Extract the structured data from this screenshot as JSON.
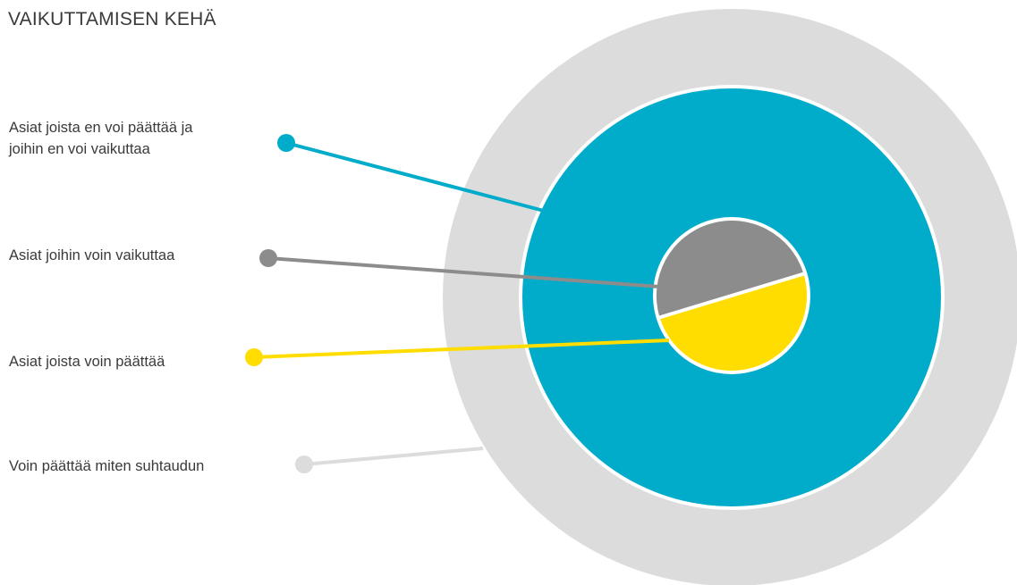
{
  "title": "VAIKUTTAMISEN KEHÄ",
  "labels": {
    "cannot_decide_or_influence_line1": "Asiat joista en voi päättää ja",
    "cannot_decide_or_influence_line2": "joihin en voi vaikuttaa",
    "can_influence": "Asiat joihin voin vaikuttaa",
    "can_decide": "Asiat joista voin päättää",
    "attitude": "Voin päättää miten suhtaudun"
  },
  "colors": {
    "outer_ring": "#dcdcdc",
    "teal_ring": "#00acca",
    "gray_half": "#8c8c8c",
    "yellow_half": "#ffdd00",
    "divider": "#ffffff",
    "text": "#3a3a3a"
  }
}
